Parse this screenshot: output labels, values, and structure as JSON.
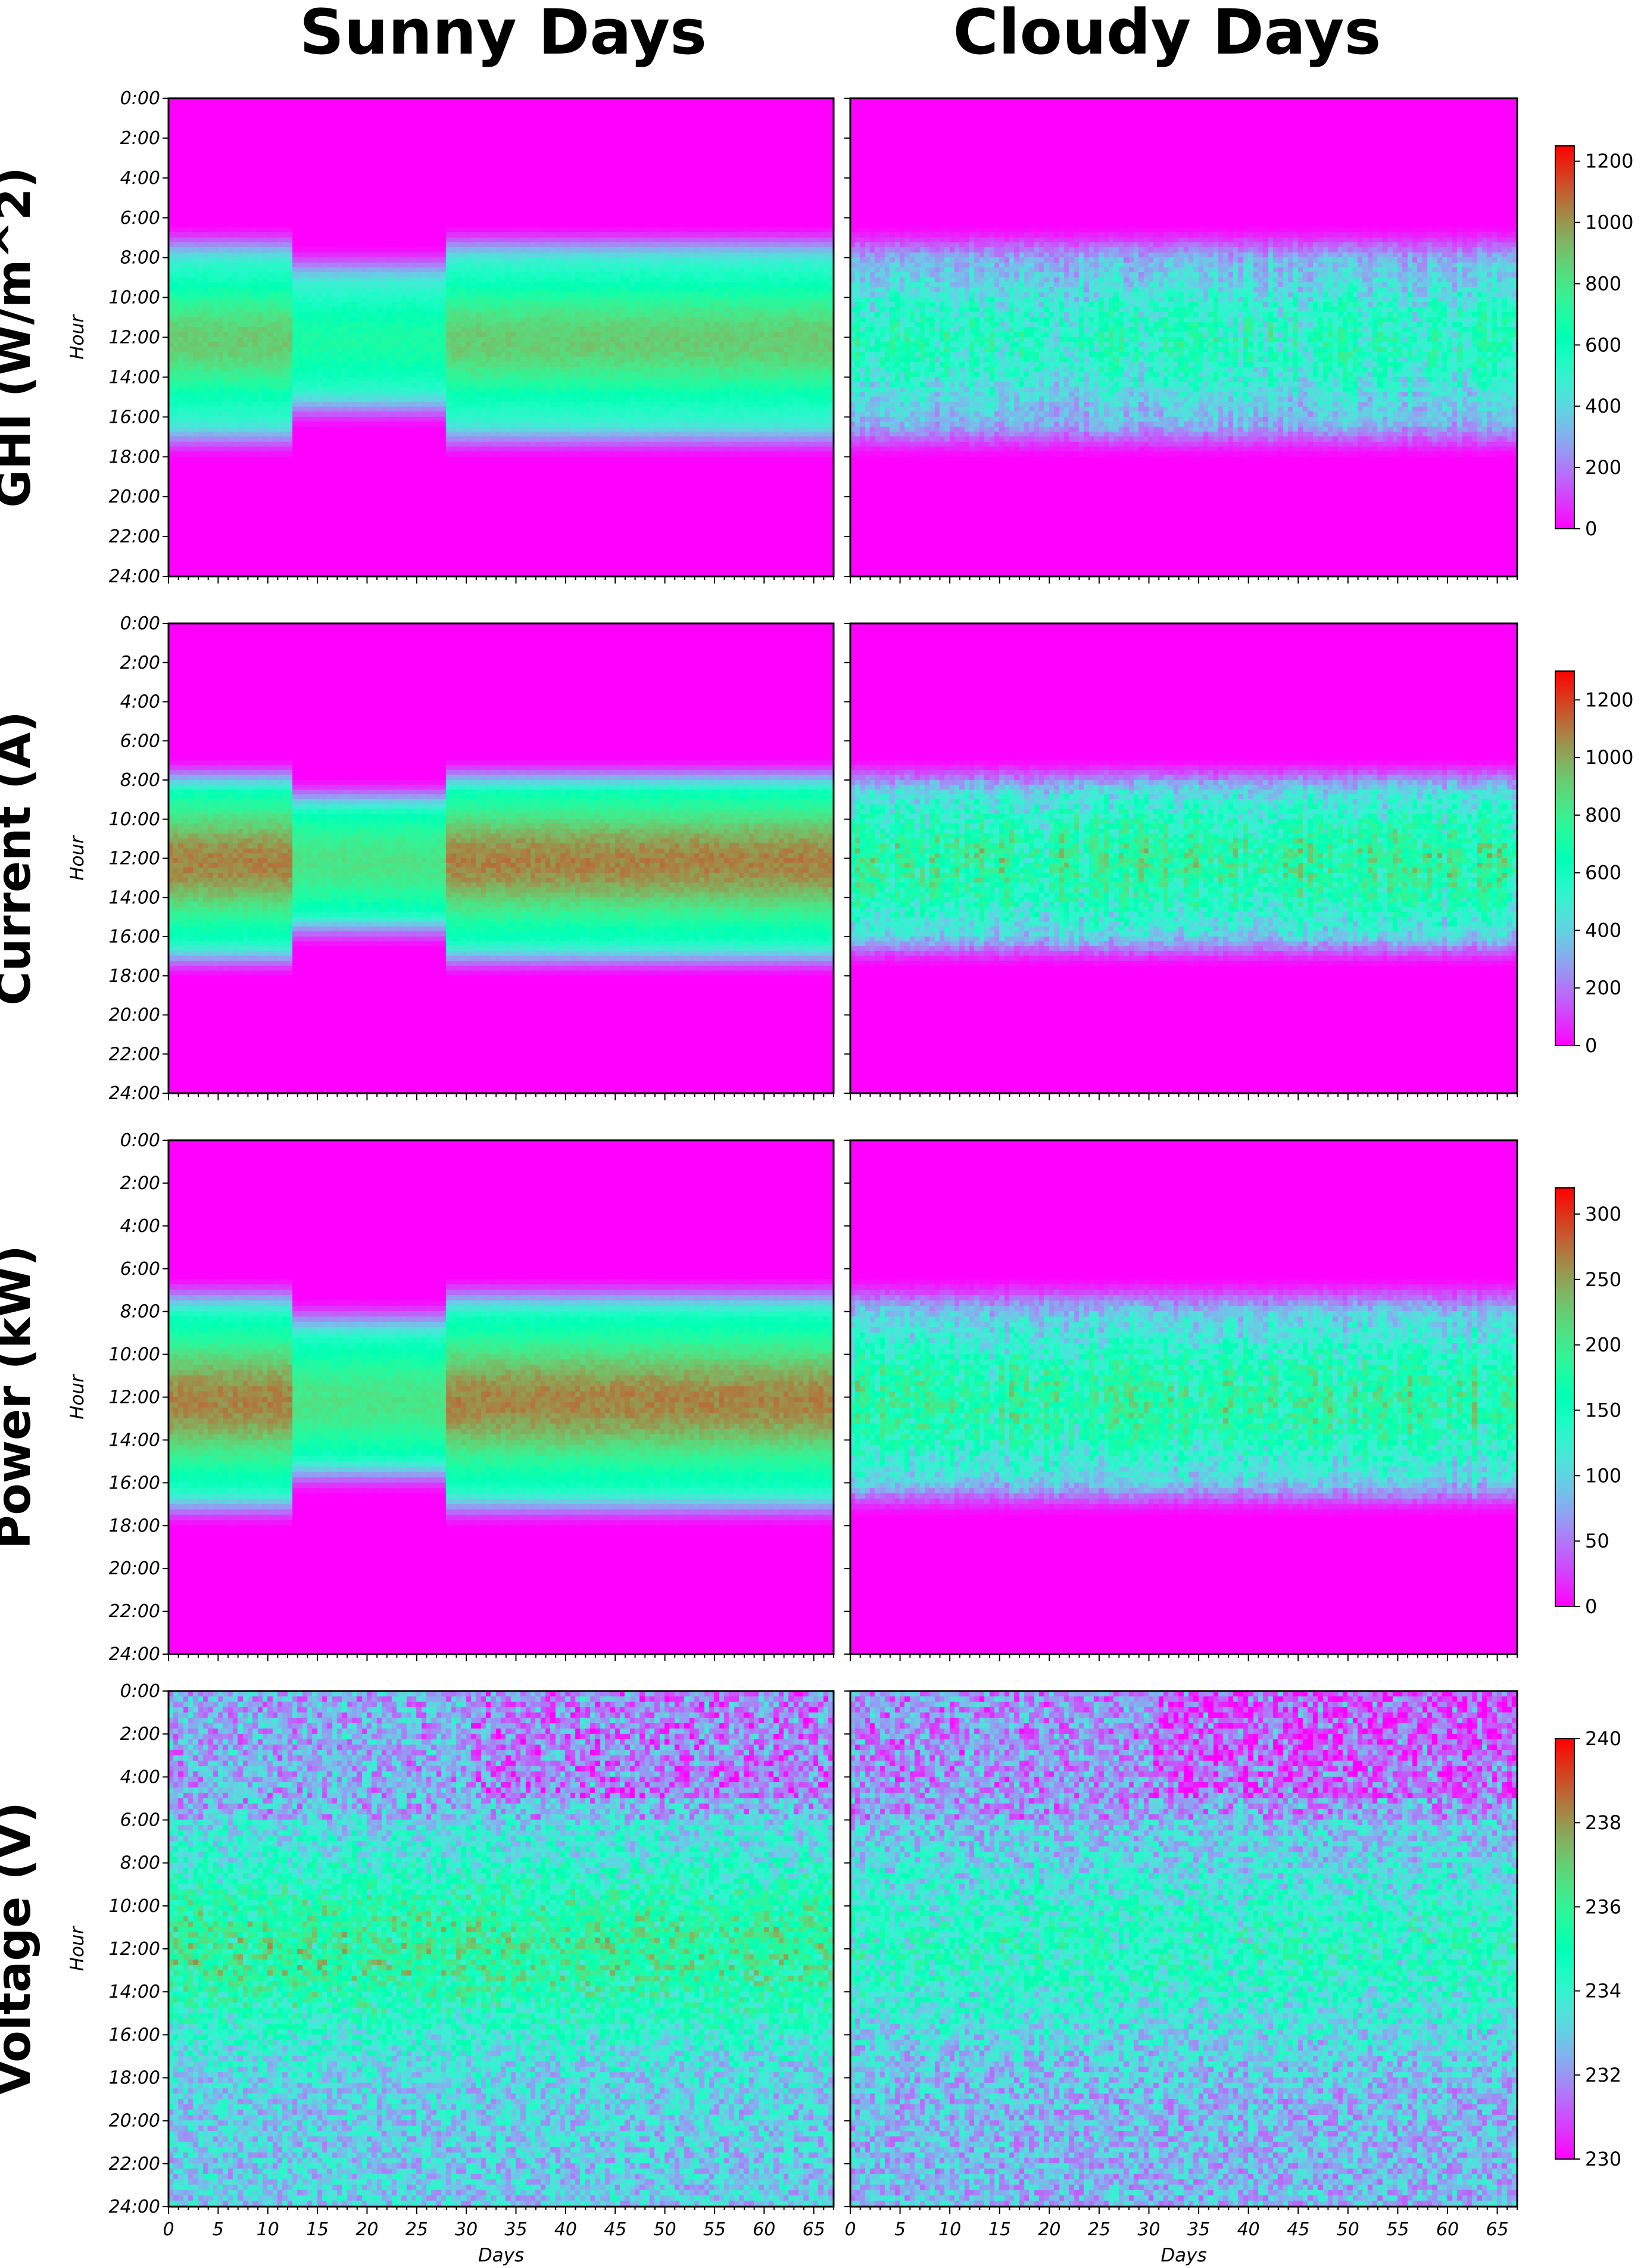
{
  "columns": [
    "Sunny Days",
    "Cloudy Days"
  ],
  "colors": {
    "colormap": "rainbow",
    "low": "#7f00ff",
    "high": "#ff0000",
    "background": "#ffffff"
  },
  "chart_data": [
    {
      "type": "heatmap",
      "row_title": "GHI (W/m^2)",
      "ylabel": "Hour",
      "xlabel": "",
      "y_ticks": [
        "0:00",
        "2:00",
        "4:00",
        "6:00",
        "8:00",
        "10:00",
        "12:00",
        "14:00",
        "16:00",
        "18:00",
        "20:00",
        "22:00",
        "24:00"
      ],
      "x_range": [
        0,
        67
      ],
      "x_tick_values": [
        0,
        5,
        10,
        15,
        20,
        25,
        30,
        35,
        40,
        45,
        50,
        55,
        60,
        65
      ],
      "x_tick_labels_shown": false,
      "colorbar": {
        "min": 0,
        "max": 1250,
        "ticks": [
          0,
          200,
          400,
          600,
          800,
          1000,
          1200
        ]
      },
      "panels": [
        {
          "name": "Sunny Days",
          "day_start_hour": 7.0,
          "day_end_hour": 17.5,
          "peak_value": 900,
          "variability": 0.08
        },
        {
          "name": "Cloudy Days",
          "day_start_hour": 7.0,
          "day_end_hour": 17.5,
          "peak_value": 800,
          "variability": 0.55
        }
      ]
    },
    {
      "type": "heatmap",
      "row_title": "Current (A)",
      "ylabel": "Hour",
      "xlabel": "",
      "y_ticks": [
        "0:00",
        "2:00",
        "4:00",
        "6:00",
        "8:00",
        "10:00",
        "12:00",
        "14:00",
        "16:00",
        "18:00",
        "20:00",
        "22:00",
        "24:00"
      ],
      "x_range": [
        0,
        67
      ],
      "x_tick_values": [
        0,
        5,
        10,
        15,
        20,
        25,
        30,
        35,
        40,
        45,
        50,
        55,
        60,
        65
      ],
      "x_tick_labels_shown": false,
      "colorbar": {
        "min": 0,
        "max": 1300,
        "ticks": [
          0,
          200,
          400,
          600,
          800,
          1000,
          1200
        ]
      },
      "panels": [
        {
          "name": "Sunny Days",
          "day_start_hour": 7.5,
          "day_end_hour": 17.5,
          "peak_value": 1100,
          "variability": 0.08
        },
        {
          "name": "Cloudy Days",
          "day_start_hour": 7.5,
          "day_end_hour": 17.0,
          "peak_value": 1000,
          "variability": 0.55
        }
      ]
    },
    {
      "type": "heatmap",
      "row_title": "Power (kW)",
      "ylabel": "Hour",
      "xlabel": "",
      "y_ticks": [
        "0:00",
        "2:00",
        "4:00",
        "6:00",
        "8:00",
        "10:00",
        "12:00",
        "14:00",
        "16:00",
        "18:00",
        "20:00",
        "22:00",
        "24:00"
      ],
      "x_range": [
        0,
        67
      ],
      "x_tick_values": [
        0,
        5,
        10,
        15,
        20,
        25,
        30,
        35,
        40,
        45,
        50,
        55,
        60,
        65
      ],
      "x_tick_labels_shown": false,
      "colorbar": {
        "min": 0,
        "max": 320,
        "ticks": [
          0,
          50,
          100,
          150,
          200,
          250,
          300
        ]
      },
      "panels": [
        {
          "name": "Sunny Days",
          "day_start_hour": 7.0,
          "day_end_hour": 17.5,
          "peak_value": 270,
          "variability": 0.08
        },
        {
          "name": "Cloudy Days",
          "day_start_hour": 7.0,
          "day_end_hour": 17.0,
          "peak_value": 240,
          "variability": 0.55
        }
      ]
    },
    {
      "type": "heatmap",
      "row_title": "Voltage (V)",
      "ylabel": "Hour",
      "xlabel": "Days",
      "y_ticks": [
        "0:00",
        "2:00",
        "4:00",
        "6:00",
        "8:00",
        "10:00",
        "12:00",
        "14:00",
        "16:00",
        "18:00",
        "20:00",
        "22:00",
        "24:00"
      ],
      "x_range": [
        0,
        67
      ],
      "x_tick_values": [
        0,
        5,
        10,
        15,
        20,
        25,
        30,
        35,
        40,
        45,
        50,
        55,
        60,
        65
      ],
      "x_tick_labels": [
        "0",
        "5",
        "10",
        "15",
        "20",
        "25",
        "30",
        "35",
        "40",
        "45",
        "50",
        "55",
        "60",
        "65"
      ],
      "x_tick_labels_shown": true,
      "colorbar": {
        "min": 230,
        "max": 240,
        "ticks": [
          230,
          232,
          234,
          236,
          238,
          240
        ]
      },
      "panels": [
        {
          "name": "Sunny Days",
          "baseline": 233.0,
          "day_peak": 236.0,
          "variability": 0.6
        },
        {
          "name": "Cloudy Days",
          "baseline": 232.6,
          "day_peak": 234.6,
          "variability": 0.6
        }
      ]
    }
  ]
}
